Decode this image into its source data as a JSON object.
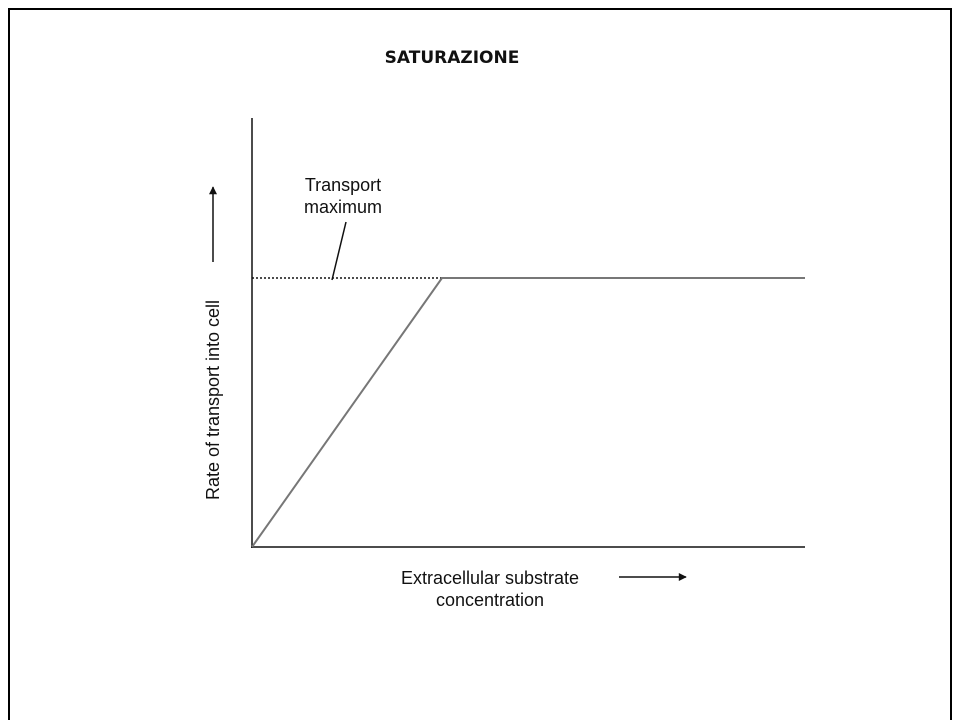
{
  "title": "SATURAZIONE",
  "y_axis_label": "Rate of transport into cell",
  "x_axis_label": [
    "Extracellular substrate",
    "concentration"
  ],
  "annotation": [
    "Transport",
    "maximum"
  ]
}
